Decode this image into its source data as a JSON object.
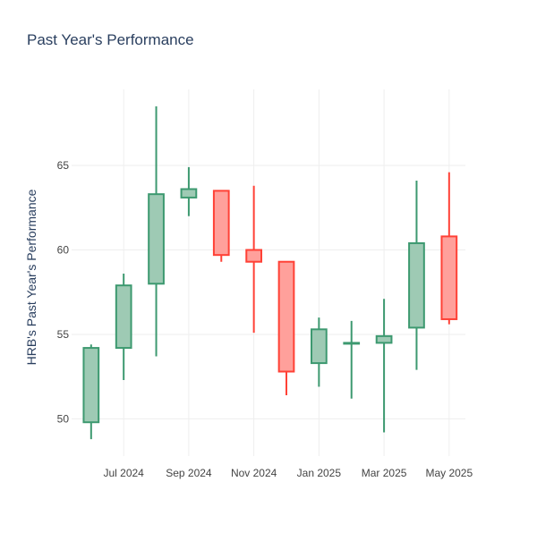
{
  "chart_data": {
    "type": "candlestick",
    "title": "Past Year's Performance",
    "xlabel": "",
    "ylabel": "HRB's Past Year's Performance",
    "grid": true,
    "legend": "none",
    "colors": {
      "increasing_line": "#3d9970",
      "increasing_fill": "#9ecab4",
      "decreasing_line": "#ff4136",
      "decreasing_fill": "#ffa09b",
      "grid": "#eeeeee",
      "text": "#2a3f5f",
      "tick_text": "#444444"
    },
    "x": [
      "2024-06",
      "2024-07",
      "2024-08",
      "2024-09",
      "2024-10",
      "2024-11",
      "2024-12",
      "2025-01",
      "2025-02",
      "2025-03",
      "2025-04",
      "2025-05"
    ],
    "x_ticks": [
      {
        "pos": 1,
        "label": "Jul 2024"
      },
      {
        "pos": 3,
        "label": "Sep 2024"
      },
      {
        "pos": 5,
        "label": "Nov 2024"
      },
      {
        "pos": 7,
        "label": "Jan 2025"
      },
      {
        "pos": 9,
        "label": "Mar 2025"
      },
      {
        "pos": 11,
        "label": "May 2025"
      }
    ],
    "y_ticks": [
      50,
      55,
      60,
      65
    ],
    "ylim": [
      47.8,
      69.5
    ],
    "xlim": [
      -0.6,
      11.5
    ],
    "candles": [
      {
        "open": 49.8,
        "high": 54.4,
        "low": 48.8,
        "close": 54.2
      },
      {
        "open": 54.2,
        "high": 58.6,
        "low": 52.3,
        "close": 57.9
      },
      {
        "open": 58.0,
        "high": 68.5,
        "low": 53.7,
        "close": 63.3
      },
      {
        "open": 63.1,
        "high": 64.9,
        "low": 62.0,
        "close": 63.6
      },
      {
        "open": 63.5,
        "high": 63.5,
        "low": 59.3,
        "close": 59.7
      },
      {
        "open": 60.0,
        "high": 63.8,
        "low": 55.1,
        "close": 59.3
      },
      {
        "open": 59.3,
        "high": 59.3,
        "low": 51.4,
        "close": 52.8
      },
      {
        "open": 53.3,
        "high": 56.0,
        "low": 51.9,
        "close": 55.3
      },
      {
        "open": 54.5,
        "high": 55.8,
        "low": 51.2,
        "close": 54.5
      },
      {
        "open": 54.5,
        "high": 57.1,
        "low": 49.2,
        "close": 54.9
      },
      {
        "open": 55.4,
        "high": 64.1,
        "low": 52.9,
        "close": 60.4
      },
      {
        "open": 60.8,
        "high": 64.6,
        "low": 55.6,
        "close": 55.9
      }
    ]
  }
}
